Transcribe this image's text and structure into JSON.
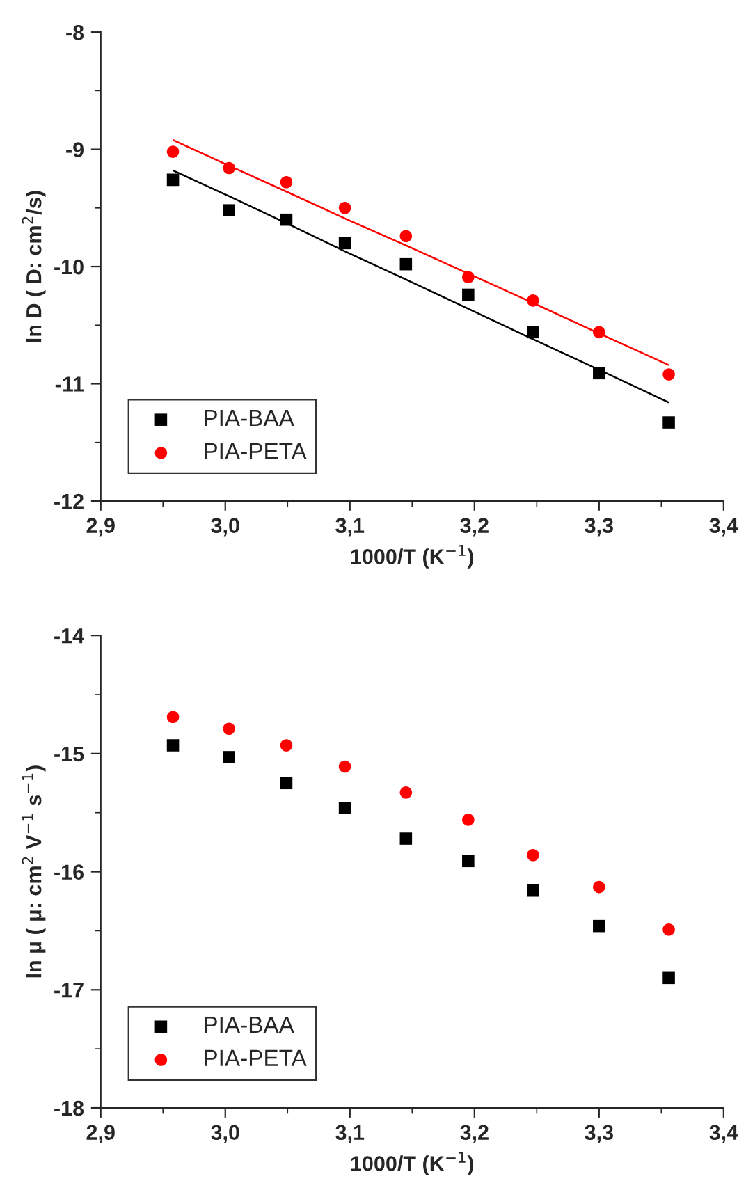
{
  "chart_data": [
    {
      "type": "scatter",
      "xlabel": "1000/T (K$^{−1}$)",
      "ylabel": "ln D ( D: cm$^{2}$/s)",
      "x": [
        2.958,
        3.003,
        3.049,
        3.096,
        3.145,
        3.195,
        3.247,
        3.3,
        3.356
      ],
      "series": [
        {
          "name": "PIA-BAA",
          "color": "#000000",
          "marker": "square",
          "values": [
            -9.26,
            -9.52,
            -9.6,
            -9.8,
            -9.98,
            -10.24,
            -10.56,
            -10.91,
            -11.33
          ]
        },
        {
          "name": "PIA-PETA",
          "color": "#ff0000",
          "marker": "circle",
          "values": [
            -9.02,
            -9.16,
            -9.28,
            -9.5,
            -9.74,
            -10.09,
            -10.29,
            -10.56,
            -10.92
          ]
        },
        {
          "type": "line",
          "color": "#000000",
          "values": [
            -9.18,
            -9.4,
            -9.63,
            -9.87,
            -10.11,
            -10.36,
            -10.62,
            -10.88,
            -11.16
          ]
        },
        {
          "type": "line",
          "color": "#ff0000",
          "values": [
            -8.92,
            -9.14,
            -9.36,
            -9.59,
            -9.82,
            -10.06,
            -10.31,
            -10.57,
            -10.84
          ]
        }
      ],
      "xlim": [
        2.9,
        3.4
      ],
      "xticks": [
        {
          "value": 2.9,
          "label": "2,9"
        },
        {
          "value": 3.0,
          "label": "3,0"
        },
        {
          "value": 3.1,
          "label": "3,1"
        },
        {
          "value": 3.2,
          "label": "3,2"
        },
        {
          "value": 3.3,
          "label": "3,3"
        },
        {
          "value": 3.4,
          "label": "3,4"
        }
      ],
      "ylim": [
        -12,
        -8
      ],
      "yticks": [
        -12,
        -11,
        -10,
        -9,
        -8
      ],
      "grid": false,
      "legend": "bottom left"
    },
    {
      "type": "scatter",
      "xlabel": "1000/T (K$^{−1}$)",
      "ylabel": "ln μ ( μ: cm$^{2}$ V$^{−1}$ s$^{−1}$)",
      "x": [
        2.958,
        3.003,
        3.049,
        3.096,
        3.145,
        3.195,
        3.247,
        3.3,
        3.356
      ],
      "series": [
        {
          "name": "PIA-BAA",
          "color": "#000000",
          "marker": "square",
          "values": [
            -14.93,
            -15.03,
            -15.25,
            -15.46,
            -15.72,
            -15.91,
            -16.16,
            -16.46,
            -16.9
          ]
        },
        {
          "name": "PIA-PETA",
          "color": "#ff0000",
          "marker": "circle",
          "values": [
            -14.69,
            -14.79,
            -14.93,
            -15.11,
            -15.33,
            -15.56,
            -15.86,
            -16.13,
            -16.49
          ]
        }
      ],
      "xlim": [
        2.9,
        3.4
      ],
      "xticks": [
        {
          "value": 2.9,
          "label": "2,9"
        },
        {
          "value": 3.0,
          "label": "3,0"
        },
        {
          "value": 3.1,
          "label": "3,1"
        },
        {
          "value": 3.2,
          "label": "3,2"
        },
        {
          "value": 3.3,
          "label": "3,3"
        },
        {
          "value": 3.4,
          "label": "3,4"
        }
      ],
      "ylim": [
        -18,
        -14
      ],
      "yticks": [
        -18,
        -17,
        -16,
        -15,
        -14
      ],
      "grid": false,
      "legend": "bottom left"
    }
  ]
}
